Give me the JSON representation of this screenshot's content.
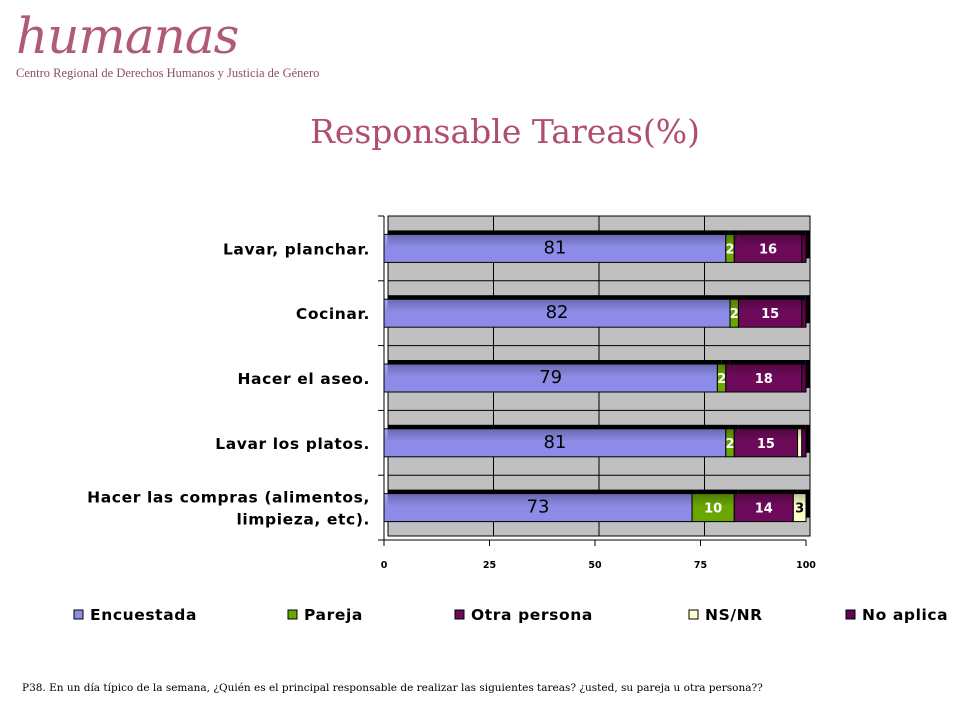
{
  "header": {
    "logo_word": "humanas",
    "logo_sub": "Centro Regional de Derechos Humanos y Justicia de Género"
  },
  "footnote": "P38. En un día típico de la semana, ¿Quién es el principal responsable de realizar las siguientes tareas? ¿usted, su pareja u otra persona??",
  "chart_data": {
    "type": "bar",
    "orientation": "horizontal",
    "stacked": true,
    "title": "Responsable Tareas(%)",
    "xlim": [
      0,
      100
    ],
    "xticks": [
      0,
      25,
      50,
      75,
      100
    ],
    "grid": true,
    "legend_position": "bottom",
    "categories": [
      "Lavar, planchar.",
      "Cocinar.",
      "Hacer el aseo.",
      "Lavar los platos.",
      "Hacer las compras (alimentos, limpieza, etc)."
    ],
    "category_lines": [
      [
        "Lavar, planchar."
      ],
      [
        "Cocinar."
      ],
      [
        "Hacer el aseo."
      ],
      [
        "Lavar los platos."
      ],
      [
        "Hacer las compras (alimentos,",
        "limpieza, etc)."
      ]
    ],
    "series": [
      {
        "name": "Encuestada",
        "color": "#8c8ce8",
        "values": [
          81,
          82,
          79,
          81,
          73
        ],
        "labels": [
          "81",
          "82",
          "79",
          "81",
          "73"
        ]
      },
      {
        "name": "Pareja",
        "color": "#6aa600",
        "values": [
          2,
          2,
          2,
          2,
          10
        ],
        "labels": [
          "2",
          "2",
          "2",
          "2",
          "10"
        ]
      },
      {
        "name": "Otra persona",
        "color": "#6e0a5a",
        "values": [
          16,
          15,
          18,
          15,
          14
        ],
        "labels": [
          "16",
          "15",
          "18",
          "15",
          "14"
        ]
      },
      {
        "name": "NS/NR",
        "color": "#ffffcc",
        "values": [
          0,
          0,
          0,
          1,
          3
        ],
        "labels": [
          "",
          "",
          "",
          "",
          "3"
        ]
      },
      {
        "name": "No aplica",
        "color": "#660055",
        "values": [
          1,
          1,
          1,
          1,
          0
        ],
        "labels": [
          "",
          "",
          "",
          "",
          ""
        ]
      }
    ],
    "colors": {
      "plot_background": "#c0c0c0",
      "title": "#b04d72"
    }
  }
}
